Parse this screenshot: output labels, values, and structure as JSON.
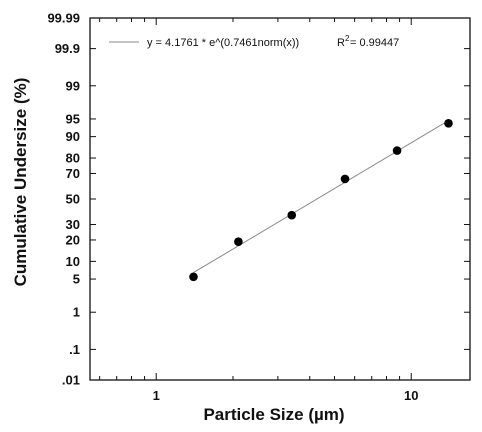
{
  "chart_data": {
    "type": "scatter",
    "title": "",
    "xlabel": "Particle Size (µm)",
    "ylabel": "Cumulative Undersize (%)",
    "x_scale": "log",
    "y_scale": "probability",
    "xlim": [
      0.55,
      17
    ],
    "ylim": [
      0.01,
      99.99
    ],
    "x_ticks": [
      {
        "value": 1,
        "label": "1"
      },
      {
        "value": 10,
        "label": "10"
      }
    ],
    "y_ticks": [
      {
        "value": 0.01,
        "label": ".01"
      },
      {
        "value": 0.1,
        "label": ".1"
      },
      {
        "value": 1,
        "label": "1"
      },
      {
        "value": 5,
        "label": "5"
      },
      {
        "value": 10,
        "label": "10"
      },
      {
        "value": 20,
        "label": "20"
      },
      {
        "value": 30,
        "label": "30"
      },
      {
        "value": 50,
        "label": "50"
      },
      {
        "value": 70,
        "label": "70"
      },
      {
        "value": 80,
        "label": "80"
      },
      {
        "value": 90,
        "label": "90"
      },
      {
        "value": 95,
        "label": "95"
      },
      {
        "value": 99,
        "label": "99"
      },
      {
        "value": 99.9,
        "label": "99.9"
      },
      {
        "value": 99.99,
        "label": "99.99"
      }
    ],
    "series": [
      {
        "marker": "filled-circle",
        "color": "#000000",
        "x": [
          1.4,
          2.1,
          3.4,
          5.5,
          8.8,
          14.0
        ],
        "y": [
          5.5,
          19,
          37,
          66,
          84,
          94
        ]
      }
    ],
    "fit_line": {
      "color": "#888888",
      "x_range": [
        1.4,
        14.0
      ],
      "equation": "y = 4.1761 * e^(0.7461norm(x))",
      "r2_prefix": "R",
      "r2_sup": "2",
      "r2_value": "= 0.99447"
    },
    "legend_position": "top-left"
  }
}
